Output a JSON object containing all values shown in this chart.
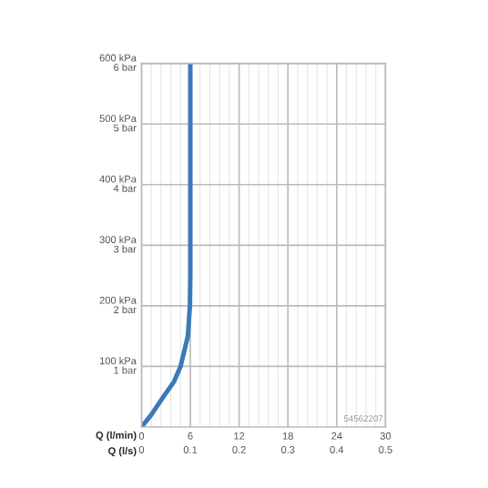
{
  "chart_data": {
    "type": "line",
    "xlabel": "Q (l/min)",
    "x2label": "Q (l/s)",
    "x": [
      0,
      1.2,
      2.7,
      4,
      4.8,
      5.7,
      5.95,
      6,
      6
    ],
    "series": [
      {
        "color": "#3a7ab8",
        "values": [
          0,
          20,
          50,
          75,
          100,
          150,
          200,
          250,
          600
        ]
      }
    ],
    "xlim": [
      0,
      30
    ],
    "xticks": [
      0,
      6,
      12,
      18,
      24,
      30
    ],
    "x2lim": [
      0,
      0.5
    ],
    "x2ticks": [
      0,
      0.1,
      0.2,
      0.3,
      0.4,
      0.5
    ],
    "ylim": [
      0,
      600
    ],
    "yticks": [
      {
        "value": 100,
        "label": "100 kPa"
      },
      {
        "value": 200,
        "label": "200 kPa"
      },
      {
        "value": 300,
        "label": "300 kPa"
      },
      {
        "value": 400,
        "label": "400 kPa"
      },
      {
        "value": 500,
        "label": "500 kPa"
      },
      {
        "value": 600,
        "label": "600 kPa"
      }
    ],
    "y2lim": [
      0,
      6
    ],
    "y2ticks": [
      {
        "value": 1,
        "label": "1 bar"
      },
      {
        "value": 2,
        "label": "2 bar"
      },
      {
        "value": 3,
        "label": "3 bar"
      },
      {
        "value": 4,
        "label": "4 bar"
      },
      {
        "value": 5,
        "label": "5 bar"
      },
      {
        "value": 6,
        "label": "6 bar"
      }
    ],
    "grid": true,
    "marker": "none",
    "line_style": "solid",
    "annotations": [
      "54562207"
    ]
  }
}
